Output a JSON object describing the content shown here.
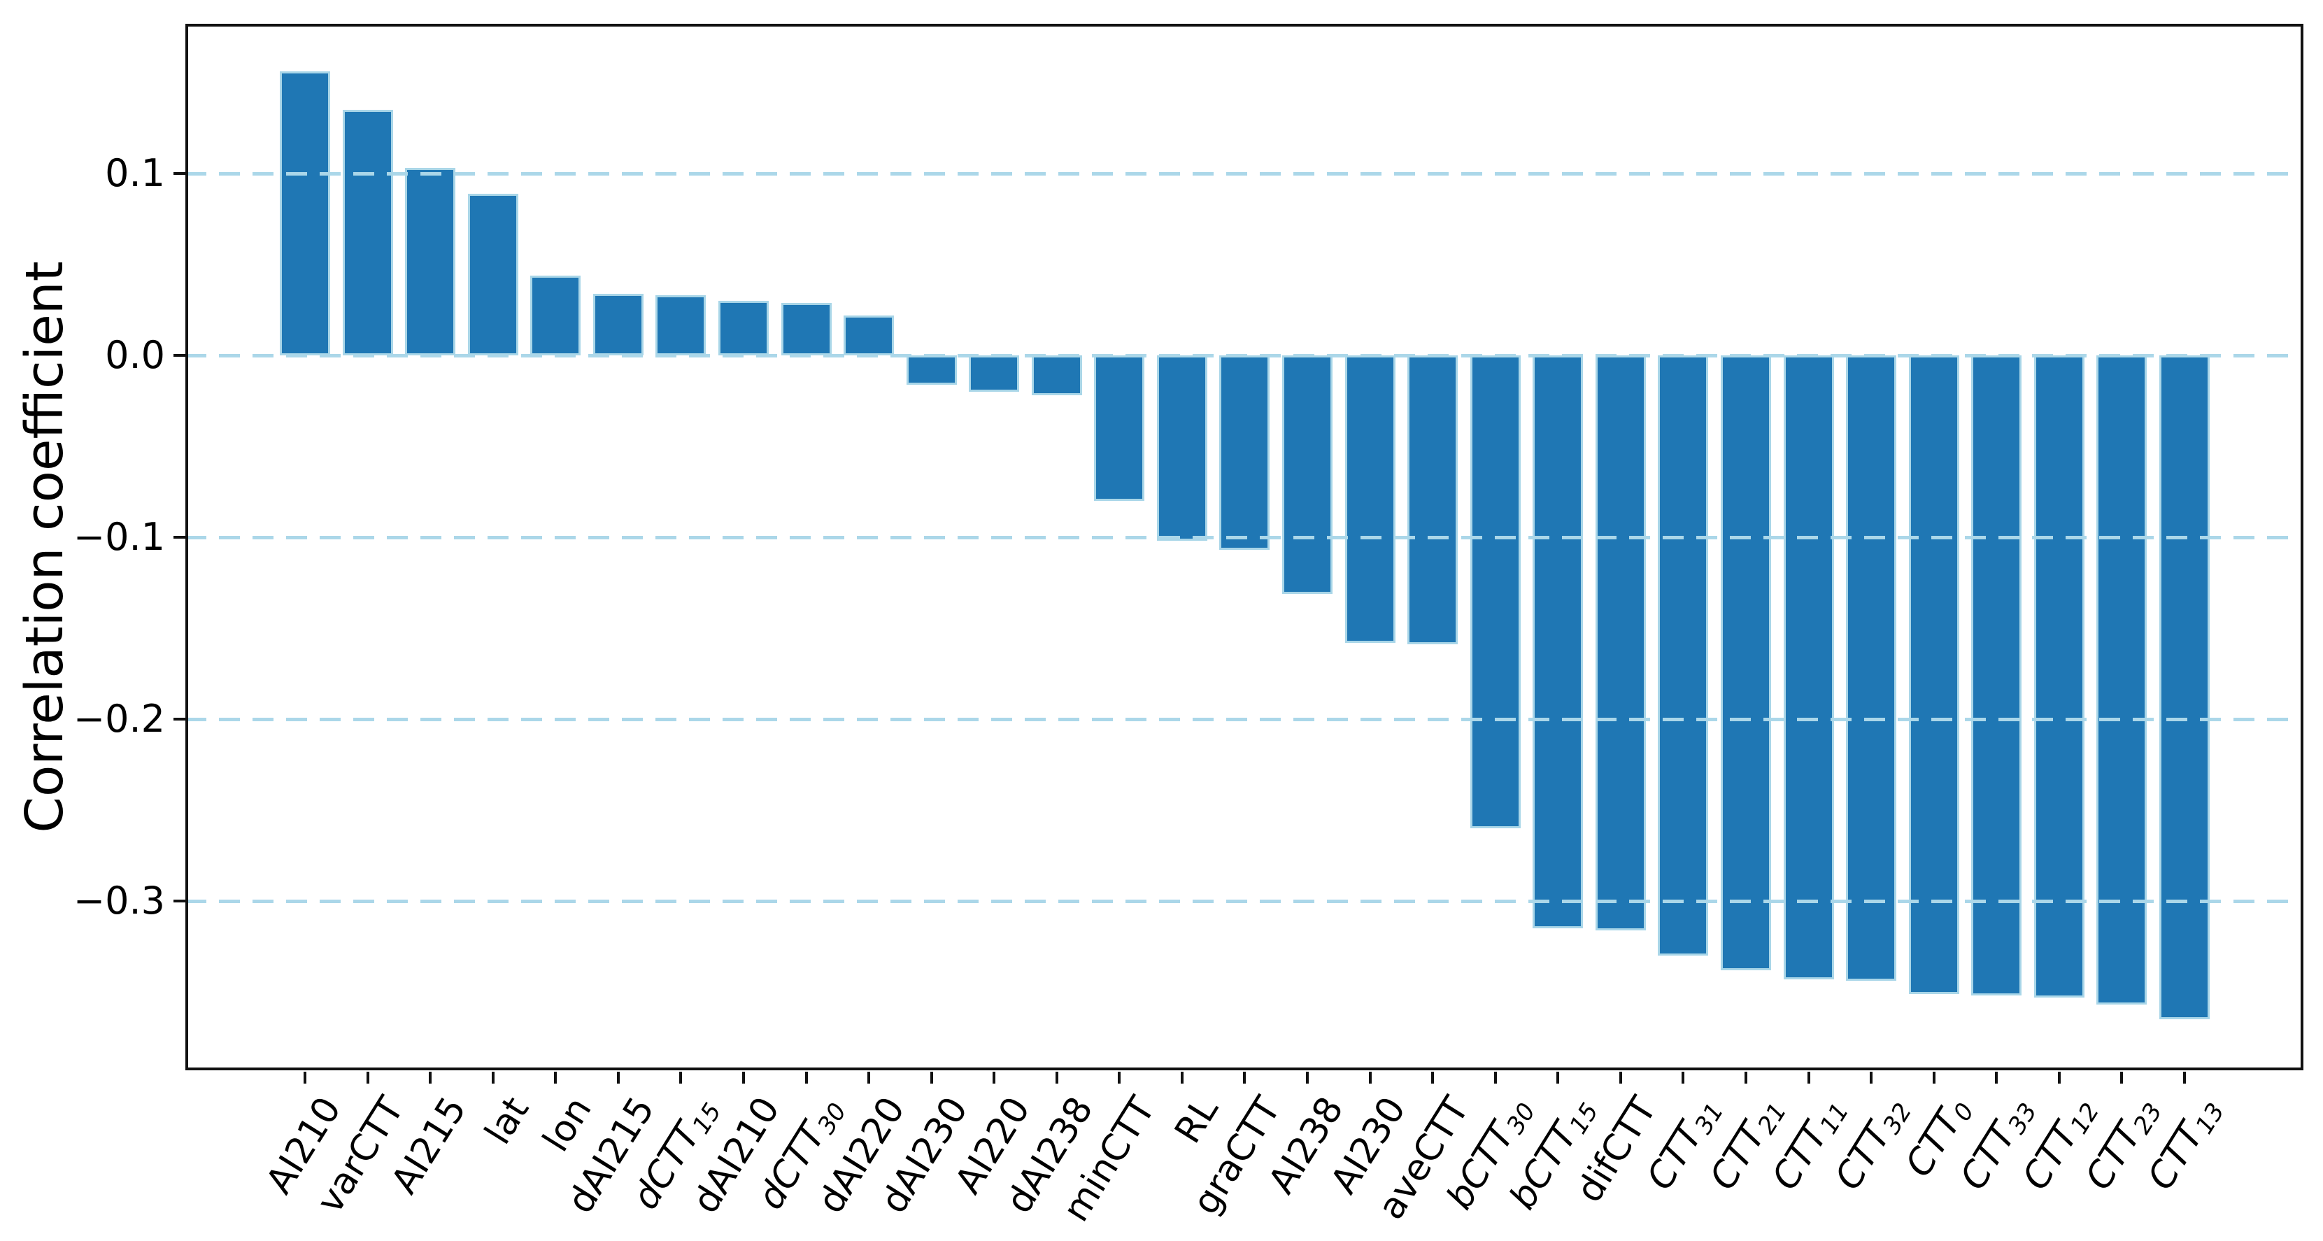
{
  "chart_data": {
    "type": "bar",
    "title": "",
    "xlabel": "",
    "ylabel": "Correlation coefficient",
    "grid": true,
    "legend_position": "none",
    "bar_color": "#1f77b4",
    "bar_edge_color": "#a9d6e8",
    "grid_color": "#abd7e9",
    "grid_style": "dashed",
    "spine_color": "#111111",
    "ylim": [
      -0.393,
      0.182
    ],
    "yticks": [
      {
        "value": 0.1,
        "label": "0.1"
      },
      {
        "value": 0.0,
        "label": "0.0"
      },
      {
        "value": -0.1,
        "label": "−0.1"
      },
      {
        "value": -0.2,
        "label": "−0.2"
      },
      {
        "value": -0.3,
        "label": "−0.3"
      }
    ],
    "categories": [
      {
        "label": "AI210",
        "base": "AI210",
        "sub": "",
        "italic": false
      },
      {
        "label": "varCTT",
        "base": "varCTT",
        "sub": "",
        "italic": false
      },
      {
        "label": "AI215",
        "base": "AI215",
        "sub": "",
        "italic": false
      },
      {
        "label": "lat",
        "base": "lat",
        "sub": "",
        "italic": false
      },
      {
        "label": "lon",
        "base": "lon",
        "sub": "",
        "italic": false
      },
      {
        "label": "dAI215",
        "base": "dAI215",
        "sub": "",
        "italic": false
      },
      {
        "label": "dCTT15",
        "base": "dCTT",
        "sub": "15",
        "italic": true
      },
      {
        "label": "dAI210",
        "base": "dAI210",
        "sub": "",
        "italic": false
      },
      {
        "label": "dCTT30",
        "base": "dCTT",
        "sub": "30",
        "italic": true
      },
      {
        "label": "dAI220",
        "base": "dAI220",
        "sub": "",
        "italic": false
      },
      {
        "label": "dAI230",
        "base": "dAI230",
        "sub": "",
        "italic": false
      },
      {
        "label": "AI220",
        "base": "AI220",
        "sub": "",
        "italic": false
      },
      {
        "label": "dAI238",
        "base": "dAI238",
        "sub": "",
        "italic": false
      },
      {
        "label": "minCTT",
        "base": "minCTT",
        "sub": "",
        "italic": false
      },
      {
        "label": "RL",
        "base": "RL",
        "sub": "",
        "italic": false
      },
      {
        "label": "graCTT",
        "base": "graCTT",
        "sub": "",
        "italic": false
      },
      {
        "label": "AI238",
        "base": "AI238",
        "sub": "",
        "italic": false
      },
      {
        "label": "AI230",
        "base": "AI230",
        "sub": "",
        "italic": false
      },
      {
        "label": "aveCTT",
        "base": "aveCTT",
        "sub": "",
        "italic": false
      },
      {
        "label": "bCTT30",
        "base": "bCTT",
        "sub": "30",
        "italic": true
      },
      {
        "label": "bCTT15",
        "base": "bCTT",
        "sub": "15",
        "italic": true
      },
      {
        "label": "difCTT",
        "base": "difCTT",
        "sub": "",
        "italic": false
      },
      {
        "label": "CTT31",
        "base": "CTT",
        "sub": "31",
        "italic": true
      },
      {
        "label": "CTT21",
        "base": "CTT",
        "sub": "21",
        "italic": true
      },
      {
        "label": "CTT11",
        "base": "CTT",
        "sub": "11",
        "italic": true
      },
      {
        "label": "CTT32",
        "base": "CTT",
        "sub": "32",
        "italic": true
      },
      {
        "label": "CTT0",
        "base": "CTT",
        "sub": "0",
        "italic": true
      },
      {
        "label": "CTT33",
        "base": "CTT",
        "sub": "33",
        "italic": true
      },
      {
        "label": "CTT12",
        "base": "CTT",
        "sub": "12",
        "italic": true
      },
      {
        "label": "CTT23",
        "base": "CTT",
        "sub": "23",
        "italic": true
      },
      {
        "label": "CTT13",
        "base": "CTT",
        "sub": "13",
        "italic": true
      }
    ],
    "values": [
      0.156,
      0.135,
      0.103,
      0.089,
      0.044,
      0.034,
      0.033,
      0.03,
      0.029,
      0.022,
      -0.016,
      -0.02,
      -0.022,
      -0.08,
      -0.102,
      -0.107,
      -0.131,
      -0.158,
      -0.159,
      -0.26,
      -0.315,
      -0.316,
      -0.33,
      -0.338,
      -0.343,
      -0.344,
      -0.351,
      -0.352,
      -0.353,
      -0.357,
      -0.365
    ]
  }
}
